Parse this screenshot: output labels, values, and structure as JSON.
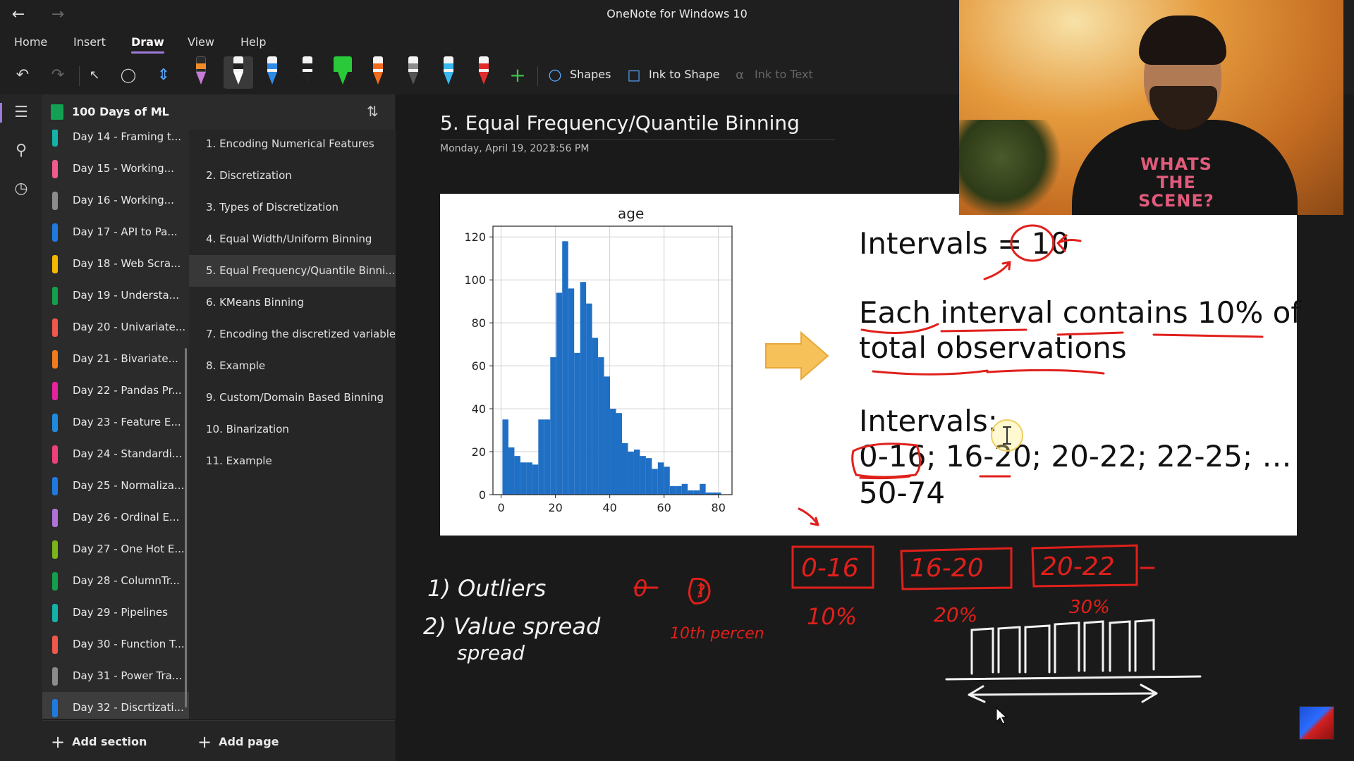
{
  "window": {
    "title": "OneNote for Windows 10"
  },
  "menu": {
    "tabs": [
      "Home",
      "Insert",
      "Draw",
      "View",
      "Help"
    ],
    "active": "Draw"
  },
  "toolbar": {
    "shapes_label": "Shapes",
    "ink_to_shape_label": "Ink to Shape",
    "ink_to_text_label": "Ink to Text",
    "pens": [
      {
        "name": "highlighter-orange-pen",
        "band": "#f28c28"
      },
      {
        "name": "white-pen",
        "band": "#ffffff"
      },
      {
        "name": "blue-pen",
        "band": "#2f8be6"
      },
      {
        "name": "black-pen",
        "band": "#222222"
      },
      {
        "name": "green-highlighter-pen",
        "band": "#29c93a"
      },
      {
        "name": "orange-pen",
        "band": "#f26b1d"
      },
      {
        "name": "gray-pen",
        "band": "#8c8c8c"
      },
      {
        "name": "cyan-pen",
        "band": "#39b8f0"
      },
      {
        "name": "red-pen",
        "band": "#e32b2b"
      }
    ]
  },
  "notebook": {
    "name": "100 Days of ML"
  },
  "sections": [
    {
      "label": "Day 14 - Framing t...",
      "color": "#14b3a8"
    },
    {
      "label": "Day 15 - Working...",
      "color": "#f05a8e"
    },
    {
      "label": "Day 16 - Working...",
      "color": "#8c8c8c"
    },
    {
      "label": "Day 17 - API to Pa...",
      "color": "#1f7ae0"
    },
    {
      "label": "Day 18 - Web Scra...",
      "color": "#f5b800"
    },
    {
      "label": "Day 19 - Understa...",
      "color": "#12a14b"
    },
    {
      "label": "Day 20 - Univariate...",
      "color": "#f0584b"
    },
    {
      "label": "Day 21 - Bivariate...",
      "color": "#f27b1d"
    },
    {
      "label": "Day 22 - Pandas Pr...",
      "color": "#e6239b"
    },
    {
      "label": "Day 23 - Feature E...",
      "color": "#1f8be0"
    },
    {
      "label": "Day 24 - Standardi...",
      "color": "#f0407a"
    },
    {
      "label": "Day 25 - Normaliza...",
      "color": "#1f7ae0"
    },
    {
      "label": "Day 26 - Ordinal E...",
      "color": "#b072d8"
    },
    {
      "label": "Day 27 - One Hot E...",
      "color": "#7cb518"
    },
    {
      "label": "Day 28 - ColumnTr...",
      "color": "#12a14b"
    },
    {
      "label": "Day 29 - Pipelines",
      "color": "#14b3a8"
    },
    {
      "label": "Day 30 - Function T...",
      "color": "#f0584b"
    },
    {
      "label": "Day 31 - Power Tra...",
      "color": "#8c8c8c"
    },
    {
      "label": "Day 32 - Discrtizati...",
      "color": "#1f7ae0"
    }
  ],
  "pages": [
    "1. Encoding Numerical Features",
    "2. Discretization",
    "3. Types of Discretization",
    "4. Equal Width/Uniform Binning",
    "5. Equal Frequency/Quantile Binni...",
    "6. KMeans Binning",
    "7. Encoding the discretized variable",
    "8. Example",
    "9. Custom/Domain Based Binning",
    "10. Binarization",
    "11. Example"
  ],
  "selected_page_index": 4,
  "bottom": {
    "add_section": "Add section",
    "add_page": "Add page"
  },
  "page": {
    "title": "5. Equal Frequency/Quantile Binning",
    "date": "Monday, April 19, 2021",
    "time": "3:56 PM"
  },
  "slide": {
    "line1": "Intervals = 10",
    "line2": "Each interval contains 10% of",
    "line3": "total observations",
    "line4": "Intervals:",
    "line5": "0-16; 16-20; 20-22; 22-25; …",
    "line6": "50-74"
  },
  "chart_data": {
    "type": "bar",
    "title": "age",
    "xlim": [
      -3,
      85
    ],
    "ylim": [
      0,
      125
    ],
    "xticks": [
      0,
      20,
      40,
      60,
      80
    ],
    "yticks": [
      0,
      20,
      40,
      60,
      80,
      100,
      120
    ],
    "grid": true,
    "bar_color": "#1f6fc4",
    "bins": [
      {
        "x0": 0.5,
        "x1": 2.7,
        "count": 35
      },
      {
        "x0": 2.7,
        "x1": 4.9,
        "count": 22
      },
      {
        "x0": 4.9,
        "x1": 7.1,
        "count": 18
      },
      {
        "x0": 7.1,
        "x1": 9.3,
        "count": 15
      },
      {
        "x0": 9.3,
        "x1": 11.5,
        "count": 15
      },
      {
        "x0": 11.5,
        "x1": 13.7,
        "count": 14
      },
      {
        "x0": 13.7,
        "x1": 15.9,
        "count": 35
      },
      {
        "x0": 15.9,
        "x1": 18.1,
        "count": 35
      },
      {
        "x0": 18.1,
        "x1": 20.3,
        "count": 64
      },
      {
        "x0": 20.3,
        "x1": 22.5,
        "count": 94
      },
      {
        "x0": 22.5,
        "x1": 24.7,
        "count": 118
      },
      {
        "x0": 24.7,
        "x1": 26.9,
        "count": 96
      },
      {
        "x0": 26.9,
        "x1": 29.1,
        "count": 66
      },
      {
        "x0": 29.1,
        "x1": 31.3,
        "count": 99
      },
      {
        "x0": 31.3,
        "x1": 33.5,
        "count": 89
      },
      {
        "x0": 33.5,
        "x1": 35.7,
        "count": 73
      },
      {
        "x0": 35.7,
        "x1": 37.9,
        "count": 64
      },
      {
        "x0": 37.9,
        "x1": 40.1,
        "count": 55
      },
      {
        "x0": 40.1,
        "x1": 42.3,
        "count": 40
      },
      {
        "x0": 42.3,
        "x1": 44.5,
        "count": 38
      },
      {
        "x0": 44.5,
        "x1": 46.7,
        "count": 24
      },
      {
        "x0": 46.7,
        "x1": 48.9,
        "count": 20
      },
      {
        "x0": 48.9,
        "x1": 51.1,
        "count": 21
      },
      {
        "x0": 51.1,
        "x1": 53.3,
        "count": 18
      },
      {
        "x0": 53.3,
        "x1": 55.5,
        "count": 17
      },
      {
        "x0": 55.5,
        "x1": 57.7,
        "count": 12
      },
      {
        "x0": 57.7,
        "x1": 59.9,
        "count": 15
      },
      {
        "x0": 59.9,
        "x1": 62.1,
        "count": 13
      },
      {
        "x0": 62.1,
        "x1": 64.3,
        "count": 4
      },
      {
        "x0": 64.3,
        "x1": 66.5,
        "count": 4
      },
      {
        "x0": 66.5,
        "x1": 68.7,
        "count": 5
      },
      {
        "x0": 68.7,
        "x1": 70.9,
        "count": 2
      },
      {
        "x0": 70.9,
        "x1": 73.1,
        "count": 2
      },
      {
        "x0": 73.1,
        "x1": 75.3,
        "count": 5
      },
      {
        "x0": 75.3,
        "x1": 77.5,
        "count": 1
      },
      {
        "x0": 77.5,
        "x1": 79.7,
        "count": 1
      },
      {
        "x0": 79.7,
        "x1": 81.0,
        "count": 1
      }
    ]
  },
  "ink_notes": {
    "outliers": "1) Outliers",
    "value_spread": "2) Value spread",
    "spread": "spread",
    "zero": "0",
    "question": "?",
    "tenth_percentile": "10th percen",
    "bin1": "0-16",
    "bin2": "16-20",
    "bin3": "20-22",
    "pct1": "10%",
    "pct2": "20%",
    "pct3": "30%"
  },
  "webcam": {
    "shirt_text": "WHATS THE SCENE?"
  },
  "colors": {
    "accent": "#9d7bd8",
    "ink_red": "#e0201b",
    "ink_white": "#f2f2f2"
  }
}
